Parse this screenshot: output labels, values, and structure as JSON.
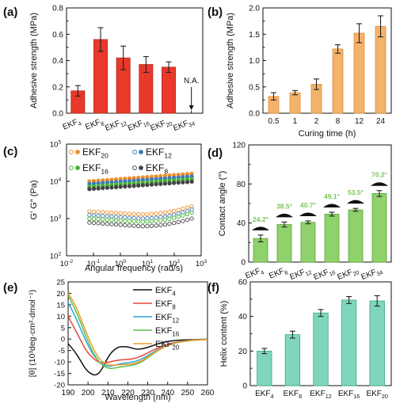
{
  "figure": {
    "panel_labels": [
      "(a)",
      "(b)",
      "(c)",
      "(d)",
      "(e)",
      "(f)"
    ]
  },
  "chart_data": [
    {
      "panel": "(a)",
      "type": "bar",
      "categories": [
        "EKF4",
        "EKF8",
        "EKF12",
        "EKF16",
        "EKF20",
        "EKF34"
      ],
      "category_labels": [
        [
          "EKF",
          "4"
        ],
        [
          "EKF",
          "8"
        ],
        [
          "EKF",
          "12"
        ],
        [
          "EKF",
          "16"
        ],
        [
          "EKF",
          "20"
        ],
        [
          "EKF",
          "34"
        ]
      ],
      "values": [
        0.17,
        0.56,
        0.42,
        0.37,
        0.35,
        null
      ],
      "errors": [
        0.04,
        0.09,
        0.09,
        0.06,
        0.04,
        null
      ],
      "annotation": "N.A.",
      "xlabel": "",
      "ylabel": "Adhesive strength (MPa)",
      "ylim": [
        0,
        0.8
      ],
      "yticks": [
        "0.0",
        "0.2",
        "0.4",
        "0.6",
        "0.8"
      ],
      "color": "#e8392b",
      "edge_color": "#b52a1e"
    },
    {
      "panel": "(b)",
      "type": "bar",
      "categories": [
        "0.5",
        "1",
        "2",
        "8",
        "12",
        "24"
      ],
      "values": [
        0.32,
        0.39,
        0.55,
        1.22,
        1.52,
        1.65
      ],
      "errors": [
        0.07,
        0.04,
        0.1,
        0.08,
        0.18,
        0.2
      ],
      "xlabel": "Curing time (h)",
      "ylabel": "Adhesive strength (MPa)",
      "ylim": [
        0,
        2.0
      ],
      "yticks": [
        "0.0",
        "0.5",
        "1.0",
        "1.5",
        "2.0"
      ],
      "color": "#f5b26b",
      "edge_color": "#d98e3c"
    },
    {
      "panel": "(c)",
      "type": "scatter",
      "scale": "log-log",
      "xlabel": "Angular frequency (rad/s)",
      "ylabel": "G′ G″ (Pa)",
      "xlim": [
        0.01,
        1000
      ],
      "ylim": [
        100,
        100000
      ],
      "xticks": [
        {
          "base": "10",
          "exp": "-2"
        },
        {
          "base": "10",
          "exp": "-1"
        },
        {
          "base": "10",
          "exp": "0"
        },
        {
          "base": "10",
          "exp": "1"
        },
        {
          "base": "10",
          "exp": "2"
        },
        {
          "base": "10",
          "exp": "3"
        }
      ],
      "yticks": [
        {
          "base": "10",
          "exp": "2"
        },
        {
          "base": "10",
          "exp": "3"
        },
        {
          "base": "10",
          "exp": "4"
        },
        {
          "base": "10",
          "exp": "5"
        }
      ],
      "legend": [
        {
          "base": "EKF",
          "sub": "20",
          "color": "#f0902a"
        },
        {
          "base": "EKF",
          "sub": "12",
          "color": "#3f78b8"
        },
        {
          "base": "EKF",
          "sub": "16",
          "color": "#44b232"
        },
        {
          "base": "EKF",
          "sub": "8",
          "color": "#444444"
        }
      ],
      "series": [
        {
          "name": "EKF20",
          "modulus": "G′",
          "color": "#f0902a",
          "filled": true,
          "y_start": 10000,
          "y_end": 16000
        },
        {
          "name": "EKF12",
          "modulus": "G′",
          "color": "#3f78b8",
          "filled": true,
          "y_start": 8500,
          "y_end": 13500
        },
        {
          "name": "EKF16",
          "modulus": "G′",
          "color": "#44b232",
          "filled": true,
          "y_start": 7200,
          "y_end": 11500
        },
        {
          "name": "EKF8",
          "modulus": "G′",
          "color": "#444444",
          "filled": true,
          "y_start": 6200,
          "y_end": 9800
        },
        {
          "name": "EKF20",
          "modulus": "G″",
          "color": "#f0902a",
          "filled": false,
          "y_start": 1550,
          "y_min": 1300,
          "y_end": 2150
        },
        {
          "name": "EKF12",
          "modulus": "G″",
          "color": "#3f78b8",
          "filled": false,
          "y_start": 1250,
          "y_min": 1000,
          "y_end": 1750
        },
        {
          "name": "EKF16",
          "modulus": "G″",
          "color": "#44b232",
          "filled": false,
          "y_start": 1000,
          "y_min": 820,
          "y_end": 1450
        },
        {
          "name": "EKF8",
          "modulus": "G″",
          "color": "#444444",
          "filled": false,
          "y_start": 780,
          "y_min": 620,
          "y_end": 1000
        }
      ]
    },
    {
      "panel": "(d)",
      "type": "bar",
      "categories": [
        "EKF4",
        "EKF8",
        "EKF12",
        "EKF16",
        "EKF20",
        "EKF34"
      ],
      "category_labels": [
        [
          "EKF",
          "4"
        ],
        [
          "EKF",
          "8"
        ],
        [
          "EKF",
          "12"
        ],
        [
          "EKF",
          "16"
        ],
        [
          "EKF",
          "20"
        ],
        [
          "EKF",
          "34"
        ]
      ],
      "values": [
        24.2,
        38.5,
        40.7,
        49.1,
        53.5,
        70.2
      ],
      "data_labels": [
        "24.2°",
        "38.5°",
        "40.7°",
        "49.1°",
        "53.5°",
        "70.2°"
      ],
      "errors": [
        3.5,
        2.5,
        1.5,
        2.0,
        1.5,
        3.0
      ],
      "xlabel": "",
      "ylabel": "Contact angle (°)",
      "ylim": [
        0,
        120
      ],
      "yticks": [
        "0",
        "40",
        "80",
        "120"
      ],
      "color": "#8fd16b",
      "edge_color": "#5aa33a",
      "label_color": "#7cc35a"
    },
    {
      "panel": "(e)",
      "type": "line",
      "xlabel": "Wavelength (nm)",
      "ylabel": "[θ] (10³deg·cm²·dmol⁻¹)",
      "xlim": [
        190,
        260
      ],
      "ylim": [
        -20,
        25
      ],
      "xticks": [
        "190",
        "200",
        "210",
        "220",
        "230",
        "240",
        "250",
        "260"
      ],
      "yticks": [
        "-20",
        "-15",
        "-10",
        "-5",
        "0",
        "5",
        "10",
        "15",
        "20",
        "25"
      ],
      "legend": [
        {
          "base": "EKF",
          "sub": "4",
          "color": "#111111"
        },
        {
          "base": "EKF",
          "sub": "8",
          "color": "#e8463a"
        },
        {
          "base": "EKF",
          "sub": "12",
          "color": "#2aa6d8"
        },
        {
          "base": "EKF",
          "sub": "16",
          "color": "#5cc14a"
        },
        {
          "base": "EKF",
          "sub": "20",
          "color": "#f39a2a"
        }
      ],
      "series": [
        {
          "name": "EKF4",
          "color": "#111111",
          "x": [
            190,
            193,
            196,
            199,
            202,
            204,
            206,
            208,
            210,
            212,
            215,
            218,
            221,
            224,
            228,
            232,
            236,
            240,
            245,
            250,
            255,
            260
          ],
          "y": [
            -2,
            -5,
            -9,
            -13.5,
            -15.5,
            -15.8,
            -14.5,
            -11.5,
            -8,
            -5.5,
            -3.5,
            -3.2,
            -3.6,
            -4.5,
            -4.2,
            -3.0,
            -1.8,
            -1.0,
            -0.5,
            -0.3,
            -0.2,
            -0.1
          ]
        },
        {
          "name": "EKF8",
          "color": "#e8463a",
          "x": [
            190,
            193,
            196,
            199,
            202,
            205,
            208,
            211,
            214,
            218,
            222,
            226,
            230,
            235,
            240,
            245,
            250,
            255,
            260
          ],
          "y": [
            10,
            5,
            0,
            -5,
            -8,
            -10,
            -10.5,
            -10,
            -9.3,
            -9.0,
            -8.8,
            -7.8,
            -6,
            -3.8,
            -2.2,
            -1.2,
            -0.6,
            -0.3,
            -0.2
          ]
        },
        {
          "name": "EKF12",
          "color": "#2aa6d8",
          "x": [
            190,
            193,
            196,
            199,
            202,
            205,
            208,
            211,
            214,
            218,
            222,
            226,
            230,
            235,
            240,
            245,
            250,
            255,
            260
          ],
          "y": [
            16,
            11,
            5,
            -1,
            -6,
            -9.5,
            -11.5,
            -12,
            -11.2,
            -10.5,
            -10.2,
            -9.2,
            -7.2,
            -4.5,
            -2.5,
            -1.3,
            -0.7,
            -0.3,
            -0.2
          ]
        },
        {
          "name": "EKF16",
          "color": "#5cc14a",
          "x": [
            190,
            193,
            196,
            199,
            202,
            205,
            208,
            211,
            214,
            218,
            222,
            226,
            230,
            235,
            240,
            245,
            250,
            255,
            260
          ],
          "y": [
            19,
            14,
            8,
            1,
            -5,
            -9.5,
            -12,
            -13,
            -12.5,
            -12,
            -11.5,
            -10.5,
            -8.2,
            -5,
            -2.8,
            -1.5,
            -0.8,
            -0.4,
            -0.2
          ]
        },
        {
          "name": "EKF20",
          "color": "#f39a2a",
          "x": [
            190,
            193,
            196,
            199,
            202,
            205,
            208,
            211,
            214,
            218,
            222,
            226,
            230,
            235,
            240,
            245,
            250,
            255,
            260
          ],
          "y": [
            20,
            16,
            10,
            3,
            -3,
            -8,
            -10.5,
            -11.5,
            -11.3,
            -11.2,
            -11,
            -10,
            -7.8,
            -4.8,
            -2.7,
            -1.4,
            -0.7,
            -0.3,
            -0.2
          ]
        }
      ]
    },
    {
      "panel": "(f)",
      "type": "bar",
      "categories": [
        "EKF4",
        "EKF8",
        "EKF12",
        "EKF16",
        "EKF20"
      ],
      "category_labels": [
        [
          "EKF",
          "4"
        ],
        [
          "EKF",
          "8"
        ],
        [
          "EKF",
          "12"
        ],
        [
          "EKF",
          "16"
        ],
        [
          "EKF",
          "20"
        ]
      ],
      "values": [
        20,
        29.5,
        42,
        49.5,
        49
      ],
      "errors": [
        1.5,
        2,
        2,
        2,
        3
      ],
      "xlabel": "",
      "ylabel": "Helix content (%)",
      "ylim": [
        0,
        60
      ],
      "yticks": [
        "0",
        "20",
        "40",
        "60"
      ],
      "color": "#7fd6bd",
      "edge_color": "#3ea88c"
    }
  ]
}
